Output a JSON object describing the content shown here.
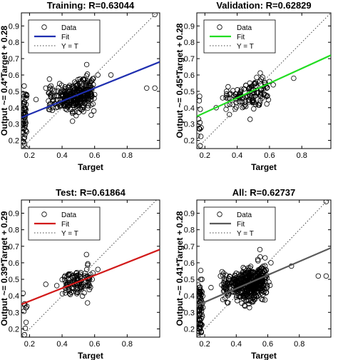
{
  "chart_data": [
    {
      "type": "scatter",
      "title": "Training: R=0.63044",
      "xlabel": "Target",
      "ylabel": "Output ~= 0.4*Target + 0.28",
      "xlim": [
        0.15,
        1.0
      ],
      "ylim": [
        0.15,
        0.98
      ],
      "xticks": [
        "0.2",
        "0.4",
        "0.6",
        "0.8"
      ],
      "yticks": [
        "0.2",
        "0.3",
        "0.4",
        "0.5",
        "0.6",
        "0.7",
        "0.8",
        "0.9"
      ],
      "fit": {
        "slope": 0.4,
        "intercept": 0.28,
        "color": "#1f2fb0"
      },
      "legend": [
        "Data",
        "Fit",
        "Y = T"
      ],
      "legend_position": "top-left",
      "clusters": [
        {
          "x": 0.17,
          "xs": 0.008,
          "y": 0.33,
          "ys": 0.1,
          "n": 60
        },
        {
          "x": 0.33,
          "xs": 0.012,
          "y": 0.45,
          "ys": 0.05,
          "n": 25
        },
        {
          "x": 0.42,
          "xs": 0.03,
          "y": 0.46,
          "ys": 0.04,
          "n": 90
        },
        {
          "x": 0.5,
          "xs": 0.035,
          "y": 0.47,
          "ys": 0.045,
          "n": 180
        },
        {
          "x": 0.56,
          "xs": 0.02,
          "y": 0.5,
          "ys": 0.05,
          "n": 60
        }
      ],
      "points": [
        [
          0.92,
          0.52
        ],
        [
          0.97,
          0.52
        ],
        [
          0.97,
          0.97
        ],
        [
          0.62,
          0.6
        ],
        [
          0.24,
          0.45
        ],
        [
          0.6,
          0.48
        ],
        [
          0.7,
          0.6
        ],
        [
          0.3,
          0.52
        ]
      ]
    },
    {
      "type": "scatter",
      "title": "Validation: R=0.62829",
      "xlabel": "Target",
      "ylabel": "Output ~= 0.45*Target + 0.28",
      "xlim": [
        0.15,
        0.98
      ],
      "ylim": [
        0.15,
        0.98
      ],
      "xticks": [
        "0.2",
        "0.4",
        "0.6",
        "0.8"
      ],
      "yticks": [
        "0.2",
        "0.3",
        "0.4",
        "0.5",
        "0.6",
        "0.7",
        "0.8",
        "0.9"
      ],
      "fit": {
        "slope": 0.45,
        "intercept": 0.28,
        "color": "#22dd22"
      },
      "legend": [
        "Data",
        "Fit",
        "Y = T"
      ],
      "legend_position": "top-left",
      "clusters": [
        {
          "x": 0.17,
          "xs": 0.006,
          "y": 0.3,
          "ys": 0.08,
          "n": 12
        },
        {
          "x": 0.34,
          "xs": 0.012,
          "y": 0.43,
          "ys": 0.04,
          "n": 10
        },
        {
          "x": 0.42,
          "xs": 0.03,
          "y": 0.46,
          "ys": 0.04,
          "n": 35
        },
        {
          "x": 0.5,
          "xs": 0.035,
          "y": 0.49,
          "ys": 0.04,
          "n": 60
        },
        {
          "x": 0.56,
          "xs": 0.02,
          "y": 0.5,
          "ys": 0.05,
          "n": 25
        }
      ],
      "points": [
        [
          0.75,
          0.58
        ],
        [
          0.27,
          0.4
        ],
        [
          0.31,
          0.46
        ],
        [
          0.6,
          0.56
        ]
      ]
    },
    {
      "type": "scatter",
      "title": "Test: R=0.61864",
      "xlabel": "Target",
      "ylabel": "Output ~= 0.39*Target + 0.29",
      "xlim": [
        0.15,
        1.0
      ],
      "ylim": [
        0.15,
        0.98
      ],
      "xticks": [
        "0.2",
        "0.4",
        "0.6",
        "0.8"
      ],
      "yticks": [
        "0.2",
        "0.3",
        "0.4",
        "0.5",
        "0.6",
        "0.7",
        "0.8",
        "0.9"
      ],
      "fit": {
        "slope": 0.39,
        "intercept": 0.29,
        "color": "#d21a1a"
      },
      "legend": [
        "Data",
        "Fit",
        "Y = T"
      ],
      "legend_position": "top-left",
      "clusters": [
        {
          "x": 0.17,
          "xs": 0.006,
          "y": 0.3,
          "ys": 0.08,
          "n": 10
        },
        {
          "x": 0.43,
          "xs": 0.03,
          "y": 0.46,
          "ys": 0.04,
          "n": 30
        },
        {
          "x": 0.5,
          "xs": 0.035,
          "y": 0.48,
          "ys": 0.045,
          "n": 60
        },
        {
          "x": 0.56,
          "xs": 0.02,
          "y": 0.5,
          "ys": 0.05,
          "n": 25
        }
      ],
      "points": [
        [
          0.55,
          0.65
        ],
        [
          0.3,
          0.47
        ],
        [
          0.62,
          0.56
        ]
      ]
    },
    {
      "type": "scatter",
      "title": "All: R=0.62737",
      "xlabel": "Target",
      "ylabel": "Output ~= 0.41*Target + 0.28",
      "xlim": [
        0.15,
        1.0
      ],
      "ylim": [
        0.15,
        0.98
      ],
      "xticks": [
        "0.2",
        "0.4",
        "0.6",
        "0.8"
      ],
      "yticks": [
        "0.2",
        "0.3",
        "0.4",
        "0.5",
        "0.6",
        "0.7",
        "0.8",
        "0.9"
      ],
      "fit": {
        "slope": 0.41,
        "intercept": 0.28,
        "color": "#5a5a5a"
      },
      "legend": [
        "Data",
        "Fit",
        "Y = T"
      ],
      "legend_position": "top-left",
      "clusters": [
        {
          "x": 0.17,
          "xs": 0.008,
          "y": 0.32,
          "ys": 0.1,
          "n": 80
        },
        {
          "x": 0.33,
          "xs": 0.012,
          "y": 0.45,
          "ys": 0.05,
          "n": 35
        },
        {
          "x": 0.42,
          "xs": 0.03,
          "y": 0.46,
          "ys": 0.04,
          "n": 130
        },
        {
          "x": 0.5,
          "xs": 0.035,
          "y": 0.47,
          "ys": 0.045,
          "n": 260
        },
        {
          "x": 0.56,
          "xs": 0.02,
          "y": 0.5,
          "ys": 0.05,
          "n": 90
        }
      ],
      "points": [
        [
          0.92,
          0.52
        ],
        [
          0.97,
          0.52
        ],
        [
          0.97,
          0.97
        ],
        [
          0.55,
          0.68
        ],
        [
          0.75,
          0.58
        ],
        [
          0.24,
          0.45
        ],
        [
          0.62,
          0.6
        ],
        [
          0.3,
          0.52
        ]
      ]
    }
  ]
}
